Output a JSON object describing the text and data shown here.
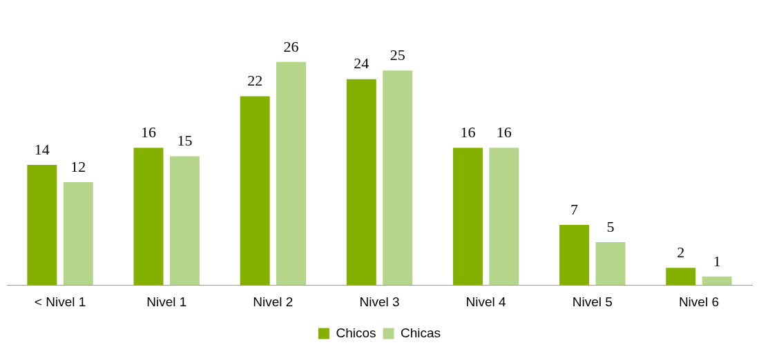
{
  "chart_data": {
    "type": "bar",
    "categories": [
      "< Nivel 1",
      "Nivel 1",
      "Nivel 2",
      "Nivel 3",
      "Nivel 4",
      "Nivel 5",
      "Nivel 6"
    ],
    "series": [
      {
        "name": "Chicos",
        "color": "#84b000",
        "values": [
          14,
          16,
          22,
          24,
          16,
          7,
          2
        ]
      },
      {
        "name": "Chicas",
        "color": "#b5d68a",
        "values": [
          12,
          15,
          26,
          25,
          16,
          5,
          1
        ]
      }
    ],
    "data_labels": true,
    "grid": false,
    "legend": "bottom"
  }
}
